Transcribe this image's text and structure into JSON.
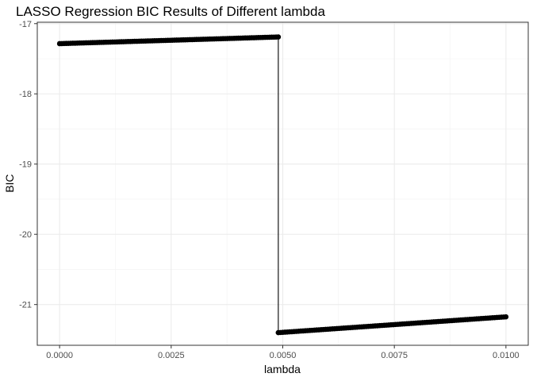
{
  "chart_data": {
    "type": "line",
    "title": "LASSO Regression BIC Results of Different lambda",
    "xlabel": "lambda",
    "ylabel": "BIC",
    "xlim": [
      -0.0005,
      0.0105
    ],
    "ylim": [
      -21.58,
      -16.98
    ],
    "x_ticks": [
      0.0,
      0.0025,
      0.005,
      0.0075,
      0.01
    ],
    "x_tick_labels": [
      "0.0000",
      "0.0025",
      "0.0050",
      "0.0075",
      "0.0100"
    ],
    "y_ticks": [
      -21,
      -20,
      -19,
      -18,
      -17
    ],
    "y_tick_labels": [
      "-21",
      "-20",
      "-19",
      "-18",
      "-17"
    ],
    "grid": true,
    "theme": "bw",
    "series": [
      {
        "line_x": [
          0.0,
          0.0049,
          0.0049,
          0.01
        ],
        "line_y": [
          -17.285,
          -17.19,
          -21.4,
          -21.175
        ],
        "segments": [
          {
            "x_start": 0.0,
            "x_end": 0.0049,
            "y_start": -17.285,
            "y_end": -17.19,
            "n_points": 100
          },
          {
            "x_start": 0.0049,
            "x_end": 0.01,
            "y_start": -21.4,
            "y_end": -21.175,
            "n_points": 102
          }
        ],
        "color": "#000000"
      }
    ]
  }
}
